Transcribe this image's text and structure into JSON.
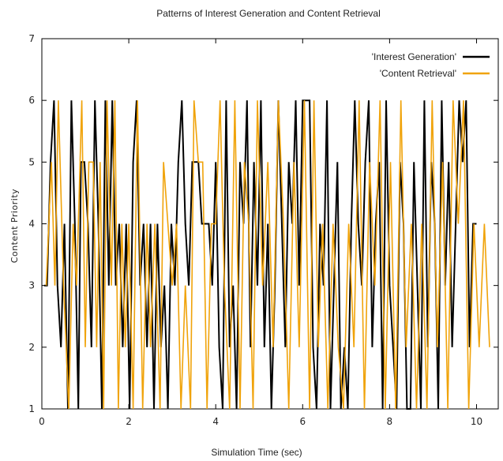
{
  "chart_data": {
    "type": "line",
    "title": "Patterns of Interest Generation and Content Retrieval",
    "xlabel": "Simulation Time (sec)",
    "ylabel": "Content Priority",
    "xlim": [
      0,
      10.5
    ],
    "ylim": [
      1,
      7
    ],
    "xticks": [
      0,
      2,
      4,
      6,
      8,
      10
    ],
    "yticks": [
      1,
      2,
      3,
      4,
      5,
      6,
      7
    ],
    "grid": false,
    "legend_position": "top-right",
    "series": [
      {
        "name": "'Interest Generation'",
        "color": "#000000",
        "x": [
          0.05,
          0.12,
          0.2,
          0.28,
          0.36,
          0.44,
          0.52,
          0.6,
          0.68,
          0.76,
          0.84,
          0.9,
          0.98,
          1.06,
          1.14,
          1.22,
          1.3,
          1.38,
          1.46,
          1.54,
          1.62,
          1.7,
          1.78,
          1.86,
          1.94,
          2.02,
          2.1,
          2.18,
          2.26,
          2.34,
          2.42,
          2.5,
          2.58,
          2.66,
          2.74,
          2.82,
          2.9,
          2.98,
          3.06,
          3.14,
          3.22,
          3.3,
          3.38,
          3.46,
          3.54,
          3.6,
          3.68,
          3.76,
          3.84,
          3.92,
          4.0,
          4.08,
          4.16,
          4.24,
          4.32,
          4.4,
          4.48,
          4.56,
          4.64,
          4.72,
          4.8,
          4.88,
          4.96,
          5.04,
          5.12,
          5.2,
          5.28,
          5.36,
          5.44,
          5.52,
          5.6,
          5.68,
          5.76,
          5.84,
          5.92,
          6.0,
          6.08,
          6.16,
          6.24,
          6.32,
          6.4,
          6.48,
          6.56,
          6.64,
          6.72,
          6.8,
          6.88,
          6.96,
          7.04,
          7.12,
          7.2,
          7.28,
          7.36,
          7.44,
          7.52,
          7.6,
          7.68,
          7.76,
          7.84,
          7.92,
          8.0,
          8.08,
          8.16,
          8.24,
          8.32,
          8.4,
          8.48,
          8.56,
          8.64,
          8.72,
          8.8,
          8.88,
          8.96,
          9.04,
          9.12,
          9.2,
          9.28,
          9.36,
          9.44,
          9.52,
          9.6,
          9.68,
          9.76,
          9.84,
          9.92,
          10.0
        ],
        "values": [
          3,
          3,
          5,
          6,
          3,
          2,
          4,
          1,
          6,
          4,
          1,
          5,
          5,
          4,
          2,
          6,
          4,
          1,
          6,
          3,
          6,
          3,
          4,
          2,
          4,
          1,
          5,
          6,
          3,
          4,
          2,
          4,
          1,
          4,
          2,
          3,
          1,
          4,
          3,
          5,
          6,
          4,
          3,
          5,
          5,
          5,
          4,
          4,
          4,
          3,
          5,
          2,
          1,
          6,
          2,
          3,
          1,
          5,
          4,
          6,
          2,
          5,
          3,
          6,
          2,
          4,
          1,
          3,
          6,
          4,
          2,
          5,
          4,
          6,
          3,
          6,
          6,
          6,
          2,
          1,
          4,
          3,
          6,
          1,
          3,
          5,
          1,
          2,
          1,
          4,
          6,
          4,
          3,
          5,
          6,
          2,
          4,
          5,
          1,
          6,
          3,
          2,
          1,
          5,
          4,
          1,
          1,
          5,
          3,
          1,
          6,
          2,
          5,
          4,
          1,
          6,
          3,
          5,
          2,
          4,
          6,
          5,
          6,
          2,
          4,
          4
        ]
      },
      {
        "name": "'Content Retrieval'",
        "color": "#f0a30a",
        "x": [
          0.1,
          0.22,
          0.3,
          0.38,
          0.5,
          0.62,
          0.72,
          0.8,
          0.92,
          1.0,
          1.08,
          1.18,
          1.26,
          1.34,
          1.42,
          1.5,
          1.6,
          1.68,
          1.76,
          1.84,
          1.92,
          2.0,
          2.1,
          2.2,
          2.32,
          2.42,
          2.5,
          2.6,
          2.72,
          2.8,
          2.9,
          3.0,
          3.1,
          3.2,
          3.3,
          3.42,
          3.5,
          3.6,
          3.7,
          3.8,
          3.9,
          4.0,
          4.1,
          4.2,
          4.32,
          4.44,
          4.56,
          4.66,
          4.76,
          4.86,
          4.96,
          5.08,
          5.2,
          5.32,
          5.44,
          5.56,
          5.68,
          5.8,
          5.92,
          6.04,
          6.16,
          6.26,
          6.36,
          6.46,
          6.58,
          6.7,
          6.82,
          6.94,
          7.06,
          7.18,
          7.3,
          7.42,
          7.54,
          7.66,
          7.78,
          7.9,
          8.02,
          8.14,
          8.26,
          8.38,
          8.5,
          8.62,
          8.74,
          8.86,
          8.98,
          9.1,
          9.22,
          9.34,
          9.46,
          9.58,
          9.7,
          9.82,
          9.94,
          10.06,
          10.18,
          10.3
        ],
        "values": [
          3,
          5,
          3,
          6,
          3,
          1,
          4,
          3,
          6,
          2,
          5,
          5,
          2,
          5,
          1,
          6,
          3,
          6,
          1,
          4,
          2,
          4,
          1,
          6,
          1,
          4,
          2,
          4,
          1,
          5,
          4,
          3,
          4,
          1,
          3,
          1,
          6,
          5,
          5,
          1,
          4,
          4,
          6,
          3,
          1,
          6,
          1,
          5,
          4,
          1,
          6,
          3,
          5,
          2,
          6,
          4,
          1,
          5,
          2,
          6,
          1,
          6,
          2,
          4,
          1,
          4,
          2,
          1,
          4,
          2,
          6,
          1,
          5,
          3,
          6,
          1,
          5,
          1,
          6,
          2,
          4,
          1,
          4,
          1,
          6,
          2,
          5,
          1,
          6,
          4,
          6,
          1,
          4,
          2,
          4,
          2
        ]
      }
    ]
  }
}
